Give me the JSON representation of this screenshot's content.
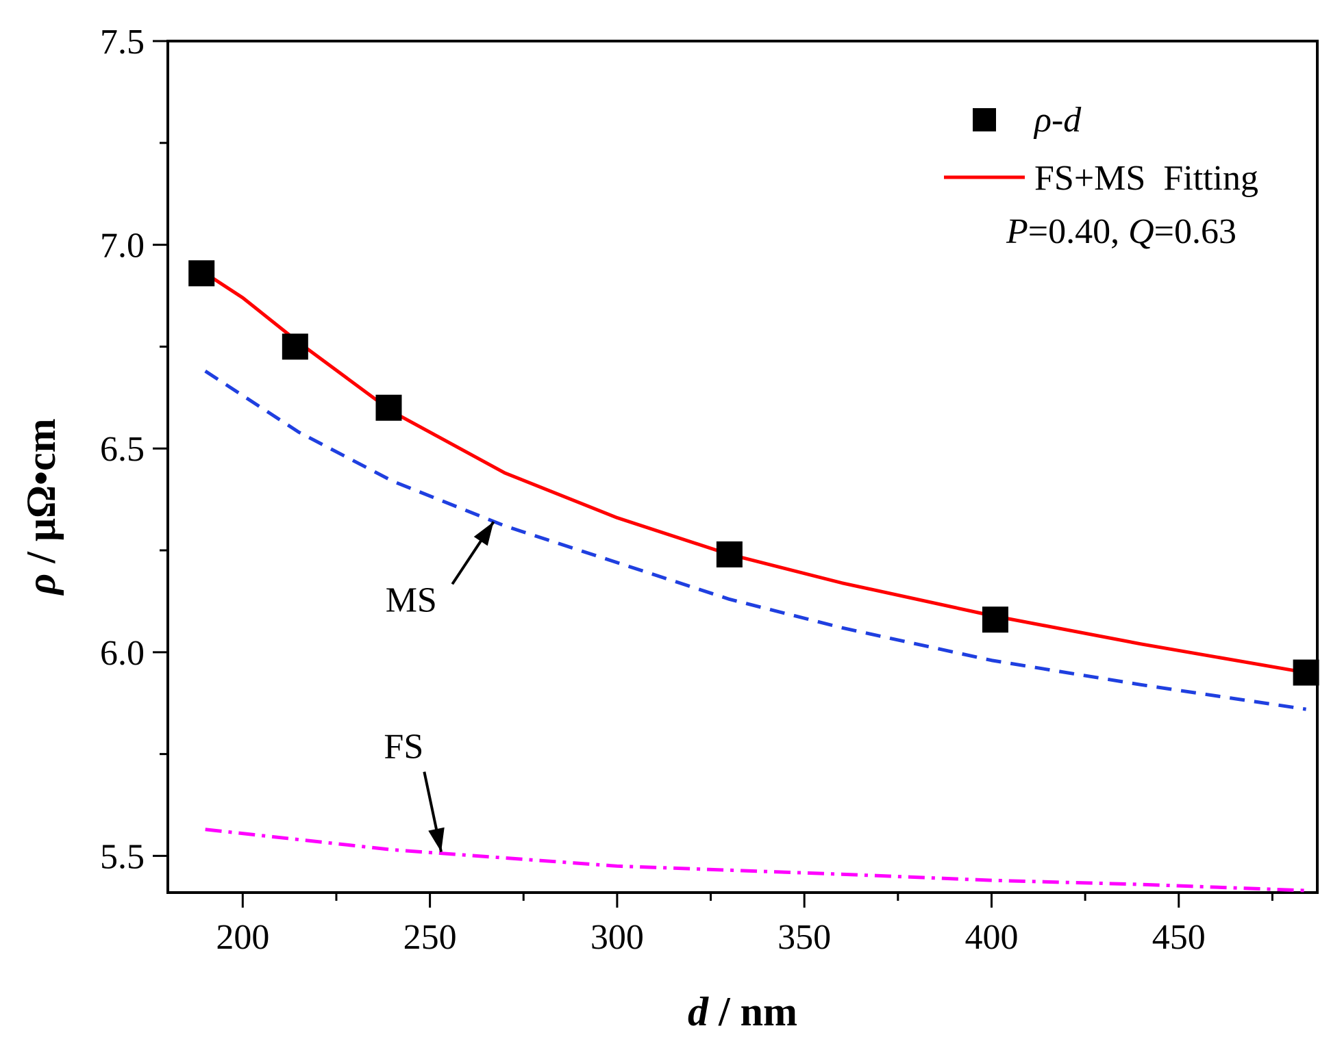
{
  "chart_data": {
    "type": "line",
    "xlabel_var": "d",
    "xlabel_unit": " / nm",
    "ylabel_var": "ρ",
    "ylabel_unit": "/ μΩ•cm",
    "xlim": [
      180,
      487
    ],
    "ylim": [
      5.41,
      7.5
    ],
    "xticks": [
      200,
      250,
      300,
      350,
      400,
      450
    ],
    "xtick_labels": [
      "200",
      "250",
      "300",
      "350",
      "400",
      "450"
    ],
    "yticks": [
      5.5,
      6.0,
      6.5,
      7.0,
      7.5
    ],
    "ytick_labels": [
      "5.5",
      "6.0",
      "6.5",
      "7.0",
      "7.5"
    ],
    "series": [
      {
        "name": "ρ-d",
        "kind": "markers",
        "color": "#000000",
        "x": [
          189,
          214,
          239,
          330,
          401,
          484
        ],
        "y": [
          6.93,
          6.75,
          6.6,
          6.24,
          6.08,
          5.95
        ]
      },
      {
        "name": "FS+MS  Fitting",
        "kind": "line",
        "style": "solid",
        "color": "#ff0000",
        "x": [
          190,
          200,
          215,
          240,
          270,
          300,
          330,
          360,
          400,
          440,
          484
        ],
        "y": [
          6.93,
          6.87,
          6.76,
          6.59,
          6.44,
          6.33,
          6.24,
          6.17,
          6.09,
          6.02,
          5.95
        ]
      },
      {
        "name": "MS",
        "kind": "line",
        "style": "dashed",
        "color": "#1f3fe0",
        "x": [
          190,
          200,
          215,
          240,
          270,
          300,
          330,
          360,
          400,
          440,
          484
        ],
        "y": [
          6.69,
          6.63,
          6.54,
          6.42,
          6.31,
          6.22,
          6.13,
          6.06,
          5.98,
          5.92,
          5.86
        ]
      },
      {
        "name": "FS",
        "kind": "line",
        "style": "dashdot",
        "color": "#ff00ff",
        "x": [
          190,
          215,
          240,
          270,
          300,
          330,
          360,
          400,
          440,
          484
        ],
        "y": [
          5.565,
          5.54,
          5.515,
          5.495,
          5.475,
          5.465,
          5.455,
          5.44,
          5.43,
          5.415
        ]
      }
    ],
    "legend": {
      "marker_label_var1": "ρ",
      "marker_label_sep": "-",
      "marker_label_var2": "d",
      "line_label": "FS+MS  Fitting",
      "param_P_var": "P",
      "param_P_value": "=0.40, ",
      "param_Q_var": "Q",
      "param_Q_value": "=0.63",
      "position": "top-right"
    },
    "annotations": [
      {
        "text": "MS",
        "x": 245,
        "y": 6.1,
        "arrow_to": [
          267,
          6.32
        ]
      },
      {
        "text": "FS",
        "x": 243,
        "y": 5.74,
        "arrow_to": [
          253,
          5.51
        ]
      }
    ]
  }
}
